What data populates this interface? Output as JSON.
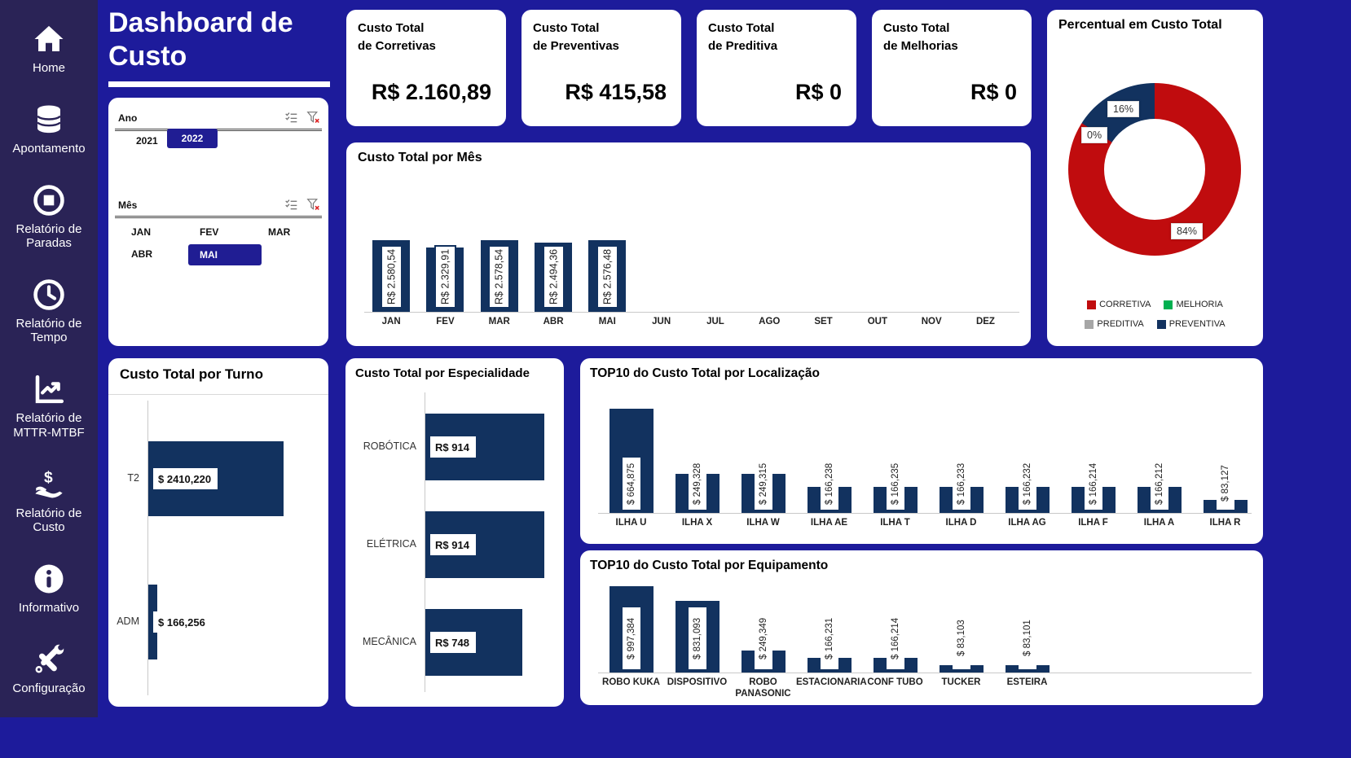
{
  "colors": {
    "background": "#1d1b9b",
    "sidebar": "#2a2356",
    "bar_navy": "#12325f",
    "red": "#c00c0e",
    "green": "#00b050",
    "gray": "#a6a6a6",
    "chip_blue": "#201d93"
  },
  "header": {
    "title": "Dashboard de Custo"
  },
  "sidebar": {
    "items": [
      {
        "label": "Home",
        "icon": "home-icon"
      },
      {
        "label": "Apontamento",
        "icon": "database-icon"
      },
      {
        "label": "Relatório de Paradas",
        "icon": "stop-circle-icon"
      },
      {
        "label": "Relatório de Tempo",
        "icon": "clock-icon"
      },
      {
        "label": "Relatório de MTTR-MTBF",
        "icon": "line-chart-icon"
      },
      {
        "label": "Relatório de Custo",
        "icon": "hand-dollar-icon"
      },
      {
        "label": "Informativo",
        "icon": "info-icon"
      },
      {
        "label": "Configuração",
        "icon": "tools-icon"
      }
    ]
  },
  "slicers": {
    "ano": {
      "label": "Ano",
      "options": [
        {
          "label": "2021",
          "selected": false
        },
        {
          "label": "2022",
          "selected": true
        }
      ]
    },
    "mes": {
      "label": "Mês",
      "options": [
        {
          "label": "JAN",
          "selected": false
        },
        {
          "label": "FEV",
          "selected": false
        },
        {
          "label": "MAR",
          "selected": false
        },
        {
          "label": "ABR",
          "selected": false
        },
        {
          "label": "MAI",
          "selected": true
        }
      ]
    }
  },
  "kpis": [
    {
      "title_l1": "Custo Total",
      "title_l2": "de Corretivas",
      "value": "R$ 2.160,89"
    },
    {
      "title_l1": "Custo Total",
      "title_l2": "de Preventivas",
      "value": "R$ 415,58"
    },
    {
      "title_l1": "Custo Total",
      "title_l2": "de Preditiva",
      "value": "R$ 0"
    },
    {
      "title_l1": "Custo Total",
      "title_l2": "de Melhorias",
      "value": "R$ 0"
    }
  ],
  "chart_data": [
    {
      "type": "pie",
      "title": "Percentual em Custo Total",
      "slices": [
        {
          "label": "CORRETIVA",
          "pct": 84,
          "pct_label": "84%",
          "color": "#c00c0e"
        },
        {
          "label": "PREDITIVA",
          "pct": 0,
          "pct_label": "0%",
          "color": "#a6a6a6"
        },
        {
          "label": "PREVENTIVA",
          "pct": 16,
          "pct_label": "16%",
          "color": "#12325f"
        }
      ],
      "legend": [
        {
          "label": "CORRETIVA",
          "color": "#c00c0e"
        },
        {
          "label": "MELHORIA",
          "color": "#00b050"
        },
        {
          "label": "PREDITIVA",
          "color": "#a6a6a6"
        },
        {
          "label": "PREVENTIVA",
          "color": "#12325f"
        }
      ],
      "legend_position": "bottom"
    },
    {
      "type": "bar",
      "title": "Custo Total por Mês",
      "categories": [
        "JAN",
        "FEV",
        "MAR",
        "ABR",
        "MAI",
        "JUN",
        "JUL",
        "AGO",
        "SET",
        "OUT",
        "NOV",
        "DEZ"
      ],
      "values": [
        2580.54,
        2329.91,
        2578.54,
        2494.36,
        2576.48,
        null,
        null,
        null,
        null,
        null,
        null,
        null
      ],
      "data_labels": [
        "R$ 2.580,54",
        "R$ 2.329,91",
        "R$ 2.578,54",
        "R$ 2.494,36",
        "R$ 2.576,48",
        null,
        null,
        null,
        null,
        null,
        null,
        null
      ],
      "ylim": [
        0,
        2580.54
      ],
      "grid": false
    },
    {
      "type": "bar",
      "orientation": "horizontal",
      "title": "Custo Total por Turno",
      "categories": [
        "T2",
        "ADM"
      ],
      "values": [
        2410.22,
        166.256
      ],
      "data_labels": [
        "$ 2410,220",
        "$ 166,256"
      ],
      "xlim": [
        0,
        2410.22
      ],
      "grid": false
    },
    {
      "type": "bar",
      "orientation": "horizontal",
      "title": "Custo Total por Especialidade",
      "categories": [
        "ROBÓTICA",
        "ELÉTRICA",
        "MECÂNICA"
      ],
      "values": [
        914,
        914,
        748
      ],
      "data_labels": [
        "R$ 914",
        "R$ 914",
        "R$ 748"
      ],
      "xlim": [
        0,
        914
      ],
      "grid": false
    },
    {
      "type": "bar",
      "title": "TOP10 do Custo Total por Localização",
      "categories": [
        "ILHA U",
        "ILHA X",
        "ILHA W",
        "ILHA AE",
        "ILHA T",
        "ILHA D",
        "ILHA AG",
        "ILHA F",
        "ILHA A",
        "ILHA R"
      ],
      "values": [
        664875,
        249328,
        249315,
        166238,
        166235,
        166233,
        166232,
        166214,
        166212,
        83127
      ],
      "data_labels": [
        "$ 664,875",
        "$ 249,328",
        "$ 249,315",
        "$ 166,238",
        "$ 166,235",
        "$ 166,233",
        "$ 166,232",
        "$ 166,214",
        "$ 166,212",
        "$ 83,127"
      ],
      "ylim": [
        0,
        664875
      ],
      "grid": false
    },
    {
      "type": "bar",
      "title": "TOP10 do Custo Total por Equipamento",
      "categories": [
        "ROBO KUKA",
        "DISPOSITIVO",
        "ROBO PANASONIC",
        "ESTACIONARIA",
        "CONF TUBO",
        "TUCKER",
        "ESTEIRA"
      ],
      "values": [
        997384,
        831093,
        249349,
        166231,
        166214,
        83103,
        83101
      ],
      "data_labels": [
        "$ 997,384",
        "$ 831,093",
        "$ 249,349",
        "$ 166,231",
        "$ 166,214",
        "$ 83,103",
        "$ 83,101"
      ],
      "ylim": [
        0,
        997384
      ],
      "grid": false
    }
  ]
}
